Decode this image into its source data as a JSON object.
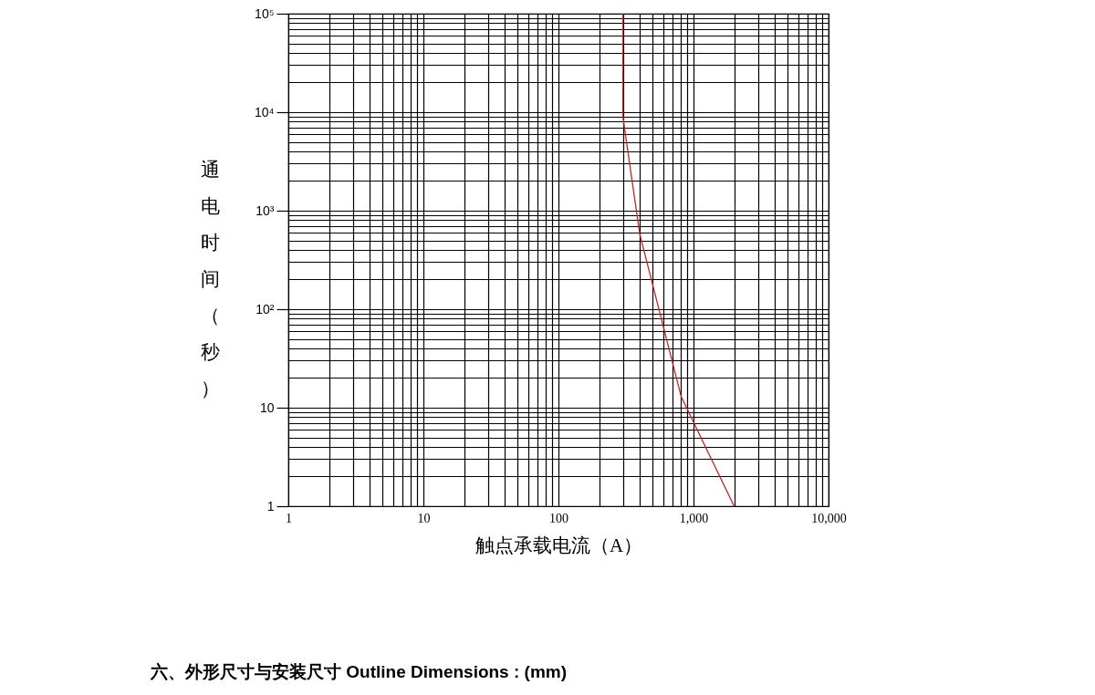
{
  "chart_data": {
    "type": "line",
    "xlabel": "触点承载电流（A）",
    "ylabel": "通电时间（秒）",
    "x": [
      300,
      300,
      400,
      810,
      2000
    ],
    "series": [
      {
        "color": "#c0262a",
        "values": [
          100000,
          9000,
          580,
          13,
          1
        ]
      }
    ],
    "log": "xy",
    "grid": true,
    "marker": "none",
    "line_style": "solid",
    "xlim": [
      1,
      10000
    ],
    "xticks": [
      1,
      {
        "value": 2,
        "label": null
      },
      {
        "value": 3,
        "label": null
      },
      {
        "value": 4,
        "label": null
      },
      {
        "value": 5,
        "label": null
      },
      {
        "value": 6,
        "label": null
      },
      {
        "value": 7,
        "label": null
      },
      {
        "value": 8,
        "label": null
      },
      {
        "value": 9,
        "label": null
      },
      10,
      {
        "value": 20,
        "label": null
      },
      {
        "value": 30,
        "label": null
      },
      {
        "value": 40,
        "label": null
      },
      {
        "value": 50,
        "label": null
      },
      {
        "value": 60,
        "label": null
      },
      {
        "value": 70,
        "label": null
      },
      {
        "value": 80,
        "label": null
      },
      {
        "value": 90,
        "label": null
      },
      100,
      {
        "value": 200,
        "label": null
      },
      {
        "value": 300,
        "label": null
      },
      {
        "value": 400,
        "label": null
      },
      {
        "value": 500,
        "label": null
      },
      {
        "value": 600,
        "label": null
      },
      {
        "value": 700,
        "label": null
      },
      {
        "value": 800,
        "label": null
      },
      {
        "value": 900,
        "label": null
      },
      {
        "value": 1000,
        "label": "1,000"
      },
      {
        "value": 2000,
        "label": null
      },
      {
        "value": 3000,
        "label": null
      },
      {
        "value": 4000,
        "label": null
      },
      {
        "value": 5000,
        "label": null
      },
      {
        "value": 6000,
        "label": null
      },
      {
        "value": 7000,
        "label": null
      },
      {
        "value": 8000,
        "label": null
      },
      {
        "value": 9000,
        "label": null
      },
      {
        "value": 10000,
        "label": "10,000"
      }
    ],
    "ylim": [
      1,
      100000
    ],
    "yticks": [
      1,
      {
        "value": 2,
        "label": null
      },
      {
        "value": 3,
        "label": null
      },
      {
        "value": 4,
        "label": null
      },
      {
        "value": 5,
        "label": null
      },
      {
        "value": 6,
        "label": null
      },
      {
        "value": 7,
        "label": null
      },
      {
        "value": 8,
        "label": null
      },
      {
        "value": 9,
        "label": null
      },
      10,
      {
        "value": 20,
        "label": null
      },
      {
        "value": 30,
        "label": null
      },
      {
        "value": 40,
        "label": null
      },
      {
        "value": 50,
        "label": null
      },
      {
        "value": 60,
        "label": null
      },
      {
        "value": 70,
        "label": null
      },
      {
        "value": 80,
        "label": null
      },
      {
        "value": 90,
        "label": null
      },
      {
        "value": 100,
        "label": "10²"
      },
      {
        "value": 200,
        "label": null
      },
      {
        "value": 300,
        "label": null
      },
      {
        "value": 400,
        "label": null
      },
      {
        "value": 500,
        "label": null
      },
      {
        "value": 600,
        "label": null
      },
      {
        "value": 700,
        "label": null
      },
      {
        "value": 800,
        "label": null
      },
      {
        "value": 900,
        "label": null
      },
      {
        "value": 1000,
        "label": "10³"
      },
      {
        "value": 2000,
        "label": null
      },
      {
        "value": 3000,
        "label": null
      },
      {
        "value": 4000,
        "label": null
      },
      {
        "value": 5000,
        "label": null
      },
      {
        "value": 6000,
        "label": null
      },
      {
        "value": 7000,
        "label": null
      },
      {
        "value": 8000,
        "label": null
      },
      {
        "value": 9000,
        "label": null
      },
      {
        "value": 10000,
        "label": "10⁴"
      },
      {
        "value": 20000,
        "label": null
      },
      {
        "value": 30000,
        "label": null
      },
      {
        "value": 40000,
        "label": null
      },
      {
        "value": 50000,
        "label": null
      },
      {
        "value": 60000,
        "label": null
      },
      {
        "value": 70000,
        "label": null
      },
      {
        "value": 80000,
        "label": null
      },
      {
        "value": 90000,
        "label": null
      },
      {
        "value": 100000,
        "label": "10⁵"
      }
    ],
    "annotations": [
      "六、外形尺寸与安装尺寸 Outline Dimensions : (mm)"
    ]
  }
}
